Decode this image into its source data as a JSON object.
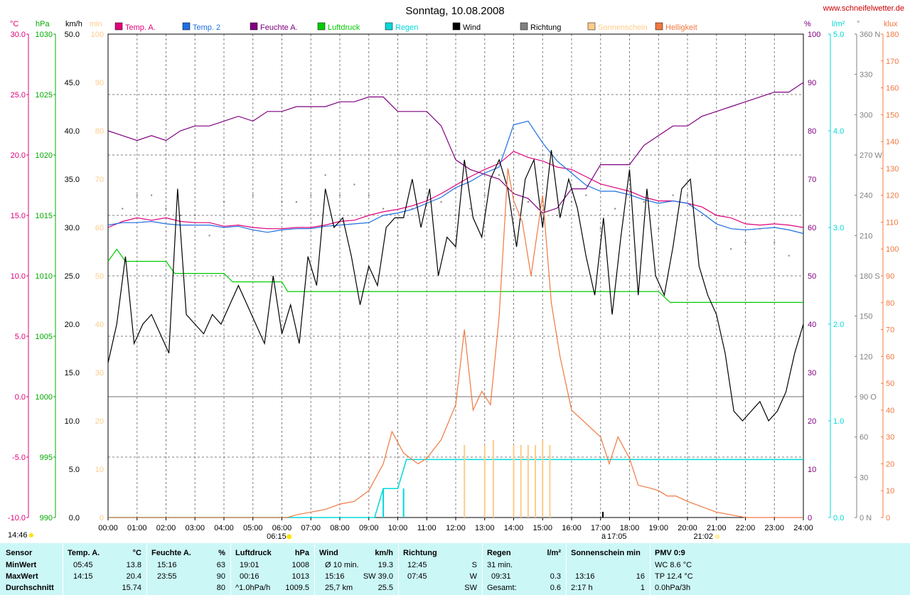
{
  "chart_data": {
    "type": "line",
    "title": "Sonntag, 10.08.2008",
    "source": "www.schneifelwetter.de",
    "x_ticks": [
      "00:00",
      "01:00",
      "02:00",
      "03:00",
      "04:00",
      "05:00",
      "06:00",
      "07:00",
      "08:00",
      "09:00",
      "10:00",
      "11:00",
      "12:00",
      "13:00",
      "14:00",
      "15:00",
      "16:00",
      "17:00",
      "18:00",
      "19:00",
      "20:00",
      "21:00",
      "22:00",
      "23:00",
      "24:00"
    ],
    "sunrise": "06:15",
    "sunset": "21:02",
    "moon_label": "ä",
    "moon_time": "17:05",
    "moonrise_time": "14:46",
    "legend": [
      {
        "label": "Temp. A.",
        "color": "#e0007a"
      },
      {
        "label": "Temp. 2",
        "color": "#1e6fe0"
      },
      {
        "label": "Feuchte A.",
        "color": "#800080"
      },
      {
        "label": "Luftdruck",
        "color": "#00cc00"
      },
      {
        "label": "Regen",
        "color": "#00d8d8"
      },
      {
        "label": "Wind",
        "color": "#000000"
      },
      {
        "label": "Richtung",
        "color": "#808080"
      },
      {
        "label": "Sonnenschein",
        "color": "#ffcc88"
      },
      {
        "label": "Helligkeit",
        "color": "#f07840"
      }
    ],
    "axes": {
      "temp": {
        "unit": "°C",
        "color": "#e0007a",
        "ticks": [
          "30.0",
          "25.0",
          "20.0",
          "15.0",
          "10.0",
          "5.0",
          "0.0",
          "-5.0",
          "-10.0"
        ],
        "range": [
          -10,
          30
        ]
      },
      "pressure": {
        "unit": "hPa",
        "color": "#00aa00",
        "ticks": [
          "1030",
          "1025",
          "1020",
          "1015",
          "1010",
          "1005",
          "1000",
          "995",
          "990"
        ],
        "range": [
          990,
          1030
        ]
      },
      "wind": {
        "unit": "km/h",
        "color": "#000000",
        "ticks": [
          "50.0",
          "45.0",
          "40.0",
          "35.0",
          "30.0",
          "25.0",
          "20.0",
          "15.0",
          "10.0",
          "5.0",
          "0.0"
        ],
        "range": [
          0,
          50
        ]
      },
      "sunshine": {
        "unit": "min",
        "color": "#ffcc88",
        "ticks": [
          "100",
          "90",
          "80",
          "70",
          "60",
          "50",
          "40",
          "30",
          "20",
          "10",
          "0"
        ],
        "range": [
          0,
          100
        ]
      },
      "humidity": {
        "unit": "%",
        "color": "#800080",
        "ticks": [
          "100",
          "90",
          "80",
          "70",
          "60",
          "50",
          "40",
          "30",
          "20",
          "10",
          "0"
        ],
        "range": [
          0,
          100
        ]
      },
      "rain": {
        "unit": "l/m²",
        "color": "#00d8d8",
        "ticks": [
          "5.0",
          "4.0",
          "3.0",
          "2.0",
          "1.0",
          "0.0"
        ],
        "range": [
          0,
          5
        ]
      },
      "direction": {
        "unit": "°",
        "color": "#808080",
        "ticks": [
          "360 N",
          "330",
          "300",
          "270 W",
          "240",
          "210",
          "180 S",
          "150",
          "120",
          "90 O",
          "60",
          "30",
          "0 N"
        ],
        "range": [
          0,
          360
        ]
      },
      "brightness": {
        "unit": "klux",
        "color": "#f07840",
        "ticks": [
          "180",
          "170",
          "160",
          "150",
          "140",
          "130",
          "120",
          "110",
          "100",
          "90",
          "80",
          "70",
          "60",
          "50",
          "40",
          "30",
          "20",
          "10",
          "0"
        ],
        "range": [
          0,
          180
        ]
      }
    },
    "series": [
      {
        "name": "Temp. A.",
        "axis": "temp",
        "color": "#e0007a",
        "x": [
          0,
          0.5,
          1,
          1.5,
          2,
          2.5,
          3,
          3.5,
          4,
          4.5,
          5,
          5.5,
          6,
          6.5,
          7,
          7.5,
          8,
          8.5,
          9,
          9.5,
          10,
          10.5,
          11,
          11.5,
          12,
          12.5,
          13,
          13.5,
          14,
          14.5,
          15,
          15.5,
          16,
          16.5,
          17,
          17.5,
          18,
          18.5,
          19,
          19.5,
          20,
          20.5,
          21,
          21.5,
          22,
          22.5,
          23,
          23.5,
          24
        ],
        "y": [
          14.0,
          14.5,
          14.8,
          14.6,
          14.8,
          14.5,
          14.4,
          14.4,
          14.1,
          14.2,
          14.0,
          13.9,
          13.9,
          14.0,
          14.0,
          14.2,
          14.5,
          14.6,
          15.0,
          15.3,
          15.5,
          15.8,
          16.2,
          16.8,
          17.5,
          18.2,
          18.8,
          19.3,
          20.3,
          19.8,
          19.5,
          19.0,
          18.8,
          18.2,
          17.6,
          17.3,
          17.0,
          16.5,
          16.2,
          16.2,
          16.0,
          15.7,
          15.0,
          14.8,
          14.3,
          14.2,
          14.3,
          14.2,
          14.0
        ]
      },
      {
        "name": "Temp. 2",
        "axis": "temp",
        "color": "#1e6fe0",
        "x": [
          0,
          0.5,
          1,
          1.5,
          2,
          2.5,
          3,
          3.5,
          4,
          4.5,
          5,
          5.5,
          6,
          6.5,
          7,
          7.5,
          8,
          8.5,
          9,
          9.5,
          10,
          10.5,
          11,
          11.5,
          12,
          12.5,
          13,
          13.5,
          14,
          14.5,
          15,
          15.5,
          16,
          16.5,
          17,
          17.5,
          18,
          18.5,
          19,
          19.5,
          20,
          20.5,
          21,
          21.5,
          22,
          22.5,
          23,
          23.5,
          24
        ],
        "y": [
          14.2,
          14.4,
          14.4,
          14.5,
          14.3,
          14.2,
          14.2,
          14.2,
          14.0,
          14.1,
          13.8,
          13.6,
          13.8,
          13.9,
          13.9,
          14.1,
          14.2,
          14.3,
          14.4,
          15.0,
          15.2,
          15.5,
          16.0,
          16.5,
          17.3,
          17.8,
          18.5,
          19.0,
          22.5,
          22.8,
          21.0,
          19.5,
          18.5,
          17.5,
          17.0,
          17.0,
          16.7,
          16.3,
          16.0,
          16.2,
          16.0,
          15.2,
          14.3,
          13.9,
          13.8,
          13.9,
          14.0,
          13.8,
          13.5
        ]
      },
      {
        "name": "Feuchte A.",
        "axis": "humidity",
        "color": "#800080",
        "x": [
          0,
          0.5,
          1,
          1.5,
          2,
          2.5,
          3,
          3.5,
          4,
          4.5,
          5,
          5.5,
          6,
          6.5,
          7,
          7.5,
          8,
          8.5,
          9,
          9.5,
          10,
          10.5,
          11,
          11.5,
          12,
          12.5,
          13,
          13.5,
          14,
          14.5,
          15,
          15.5,
          16,
          16.5,
          17,
          17.5,
          18,
          18.5,
          19,
          19.5,
          20,
          20.5,
          21,
          21.5,
          22,
          22.5,
          23,
          23.5,
          24
        ],
        "y": [
          80,
          79,
          78,
          79,
          78,
          80,
          81,
          81,
          82,
          83,
          82,
          84,
          84,
          85,
          85,
          85,
          86,
          86,
          87,
          87,
          84,
          84,
          84,
          81,
          74,
          72,
          71,
          70,
          67,
          66,
          63,
          64,
          68,
          68,
          73,
          73,
          73,
          77,
          79,
          81,
          81,
          83,
          84,
          85,
          86,
          87,
          88,
          88,
          90
        ]
      },
      {
        "name": "Luftdruck",
        "axis": "pressure",
        "color": "#00cc00",
        "x": [
          0,
          0.3,
          0.6,
          2,
          2.3,
          4,
          4.3,
          5,
          6,
          6.2,
          9,
          19,
          19.4,
          24
        ],
        "y": [
          1011.2,
          1012.2,
          1011.2,
          1011.2,
          1010.2,
          1010.2,
          1009.5,
          1009.5,
          1009.5,
          1008.7,
          1008.7,
          1008.7,
          1007.8,
          1007.8
        ]
      },
      {
        "name": "Regen",
        "axis": "rain",
        "color": "#00d8d8",
        "x": [
          0,
          9.2,
          9.5,
          10,
          10.3,
          24
        ],
        "y": [
          0,
          0,
          0.3,
          0.3,
          0.6,
          0.6
        ]
      },
      {
        "name": "Wind",
        "axis": "wind",
        "color": "#000000",
        "x": [
          0,
          0.3,
          0.6,
          0.9,
          1.2,
          1.5,
          1.8,
          2.1,
          2.4,
          2.7,
          3,
          3.3,
          3.6,
          3.9,
          4.2,
          4.5,
          4.8,
          5.1,
          5.4,
          5.7,
          6,
          6.3,
          6.6,
          6.9,
          7.2,
          7.5,
          7.8,
          8.1,
          8.4,
          8.7,
          9,
          9.3,
          9.6,
          9.9,
          10.2,
          10.5,
          10.8,
          11.1,
          11.4,
          11.7,
          12,
          12.3,
          12.6,
          12.9,
          13.2,
          13.5,
          13.8,
          14.1,
          14.4,
          14.7,
          15,
          15.3,
          15.6,
          15.9,
          16.2,
          16.5,
          16.8,
          17.1,
          17.4,
          17.7,
          18,
          18.3,
          18.6,
          18.9,
          19.2,
          19.5,
          19.8,
          20.1,
          20.4,
          20.7,
          21,
          21.3,
          21.6,
          21.9,
          22.2,
          22.5,
          22.8,
          23.1,
          23.4,
          23.7,
          24
        ],
        "y": [
          16,
          20,
          27,
          18,
          20,
          21,
          19,
          17,
          34,
          21,
          20,
          19,
          21,
          20,
          22,
          24,
          22,
          20,
          18,
          25,
          19,
          22,
          18,
          27,
          24,
          34,
          30,
          31,
          27,
          22,
          26,
          24,
          30,
          31,
          31,
          35,
          30,
          34,
          25,
          29,
          28,
          37,
          31,
          29,
          35,
          37,
          34,
          28,
          35,
          37,
          30,
          38,
          31,
          35,
          32,
          27,
          23,
          31,
          21,
          29,
          36,
          23,
          34,
          25,
          23,
          28,
          34,
          35,
          26,
          23,
          21,
          17,
          11,
          10,
          11,
          12,
          10,
          11,
          13,
          17,
          20
        ]
      },
      {
        "name": "Helligkeit",
        "axis": "brightness",
        "color": "#f07840",
        "x": [
          0,
          6.2,
          6.5,
          7,
          7.5,
          8,
          8.5,
          9,
          9.5,
          9.8,
          10.2,
          10.7,
          11,
          11.5,
          12,
          12.3,
          12.6,
          12.9,
          13.2,
          13.5,
          13.8,
          14,
          14.3,
          14.6,
          15,
          15.3,
          15.6,
          16,
          16.5,
          17,
          17.3,
          17.6,
          18,
          18.3,
          18.7,
          19,
          19.3,
          19.6,
          20,
          20.5,
          21,
          21.5,
          22,
          24
        ],
        "y": [
          0,
          0,
          1,
          2,
          3,
          5,
          6,
          10,
          20,
          32,
          24,
          20,
          22,
          29,
          42,
          70,
          40,
          47,
          42,
          75,
          130,
          118,
          110,
          90,
          120,
          80,
          60,
          40,
          35,
          30,
          20,
          30,
          22,
          12,
          11,
          10,
          8,
          8,
          6,
          4,
          2,
          1,
          0,
          0
        ]
      },
      {
        "name": "Richtung",
        "axis": "direction",
        "color": "#808080",
        "x": [
          0.5,
          1,
          1.5,
          2,
          2.5,
          3,
          3.5,
          4,
          5,
          6,
          6.5,
          7,
          7.5,
          8,
          8.5,
          9,
          9.5,
          10,
          10.5,
          11,
          11.5,
          12,
          12.5,
          13,
          13.5,
          14,
          14.5,
          15,
          15.5,
          16,
          16.5,
          17,
          17.5,
          18,
          18.5,
          19,
          19.5,
          20,
          20.5,
          21,
          21.5,
          22,
          22.5,
          23,
          23.5
        ],
        "y": [
          230,
          240,
          240,
          230,
          225,
          225,
          210,
          235,
          240,
          235,
          235,
          240,
          255,
          240,
          248,
          240,
          230,
          210,
          230,
          235,
          235,
          225,
          230,
          240,
          255,
          230,
          235,
          270,
          225,
          235,
          240,
          215,
          230,
          210,
          235,
          215,
          240,
          240,
          225,
          215,
          200,
          205,
          215,
          205,
          195
        ]
      },
      {
        "name": "Sonnenschein",
        "axis": "sunshine",
        "color": "#ffcc88",
        "x": [
          12.3,
          13.0,
          13.3,
          14.0,
          14.25,
          14.5,
          14.75,
          15.0,
          15.25
        ],
        "y": [
          15,
          15,
          16,
          15,
          15,
          15,
          15,
          16,
          15
        ]
      }
    ]
  },
  "stats": {
    "labels": {
      "sensor": "Sensor",
      "min": "MinWert",
      "max": "MaxWert",
      "avg": "Durchschnitt"
    },
    "temp": {
      "h1": "Temp. A.",
      "h2": "°C",
      "min_time": "05:45",
      "min_val": "13.8",
      "max_time": "14:15",
      "max_val": "20.4",
      "avg": "15.74"
    },
    "humidity": {
      "h1": "Feuchte A.",
      "h2": "%",
      "min_time": "15:16",
      "min_val": "63",
      "max_time": "23:55",
      "max_val": "90",
      "avg": "80"
    },
    "pressure": {
      "h1": "Luftdruck",
      "h2": "hPa",
      "min_time": "19:01",
      "min_val": "1008",
      "max_time": "00:16",
      "max_val": "1013",
      "trend": "^1.0hPa/h",
      "avg": "1009.5"
    },
    "wind": {
      "h1": "Wind",
      "h2": "km/h",
      "min_label": "Ø 10 min.",
      "min_val": "19.3",
      "max_time": "15:16",
      "max_val": "SW 39.0",
      "dist": "25,7 km",
      "avg": "25.5"
    },
    "direction": {
      "h1": "Richtung",
      "min_time": "12:45",
      "min_val": "S",
      "max_time": "07:45",
      "max_val": "W",
      "avg": "SW"
    },
    "rain": {
      "h1": "Regen",
      "h2": "l/m²",
      "min_label": "31 min.",
      "max_time": "09:31",
      "max_val": "0.3",
      "total_label": "Gesamt:",
      "total": "0.6"
    },
    "sunshine": {
      "h1": "Sonnenschein min",
      "max_time": "13:16",
      "max_val": "16",
      "avg_label": "2:17 h",
      "avg": "1"
    },
    "pmv": {
      "h1": "PMV 0:9",
      "wc": "WC 8.6 °C",
      "tp": "TP 12.4 °C",
      "tend": "0.0hPa/3h"
    }
  }
}
